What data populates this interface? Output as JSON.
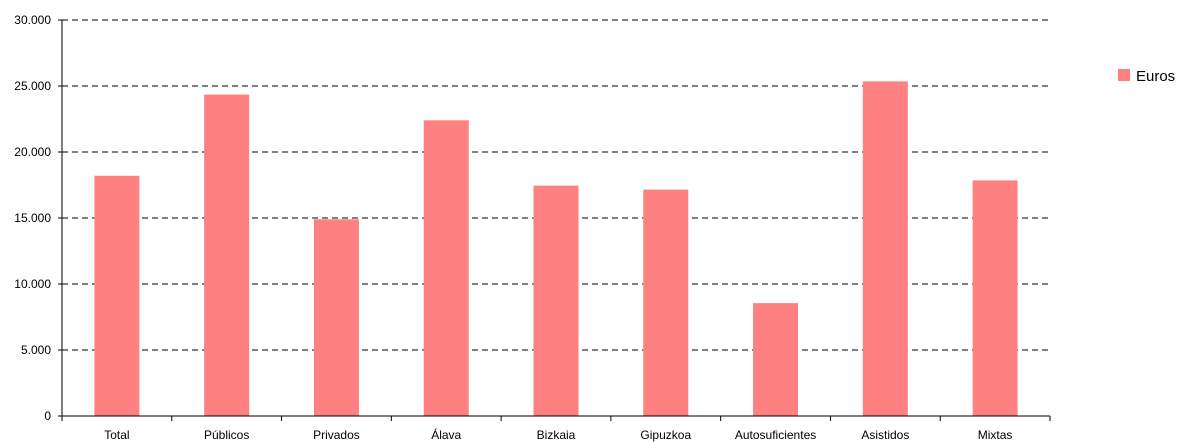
{
  "chart_data": {
    "type": "bar",
    "categories": [
      "Total",
      "Públicos",
      "Privados",
      "Álava",
      "Bizkaia",
      "Gipuzkoa",
      "Autosuficientes",
      "Asistidos",
      "Mixtas"
    ],
    "series": [
      {
        "name": "Euros",
        "color": "#ff8080",
        "values": [
          18200,
          24350,
          14900,
          22400,
          17450,
          17150,
          8550,
          25350,
          17850
        ]
      }
    ],
    "ylim": [
      0,
      30000
    ],
    "yticks": [
      0,
      5000,
      10000,
      15000,
      20000,
      25000,
      30000
    ],
    "ytick_labels": [
      "0",
      "5.000",
      "10.000",
      "15.000",
      "20.000",
      "25.000",
      "30.000"
    ],
    "grid": "horizontal dashed",
    "legend_position": "right"
  }
}
